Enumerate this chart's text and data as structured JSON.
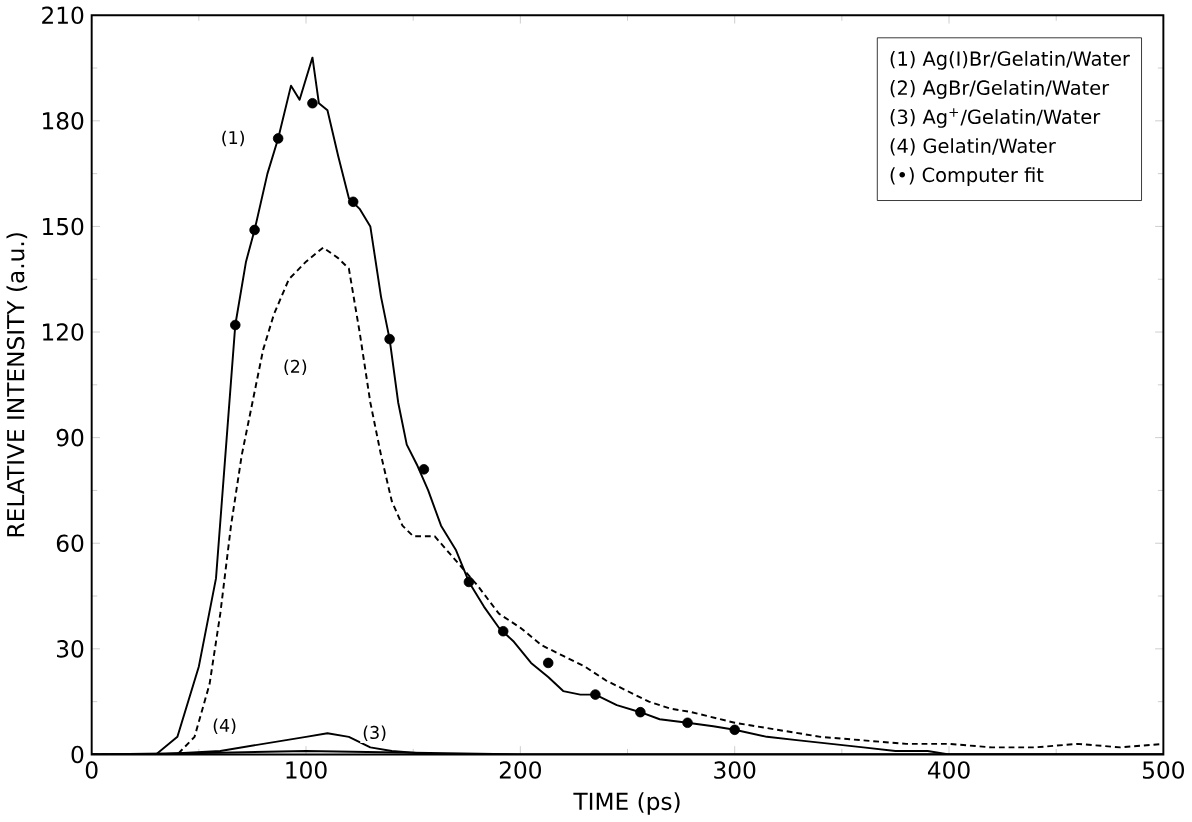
{
  "chart_data": {
    "type": "line",
    "xlabel": "TIME (ps)",
    "ylabel": "RELATIVE INTENSITY (a.u.)",
    "xlim": [
      0,
      500
    ],
    "ylim": [
      0,
      210
    ],
    "xticks": [
      0,
      100,
      200,
      300,
      400,
      500
    ],
    "yticks": [
      0,
      30,
      60,
      90,
      120,
      150,
      180,
      210
    ],
    "grid": false,
    "series": [
      {
        "color": "#000000",
        "line_style": "solid",
        "x": [
          0,
          30,
          40,
          50,
          58,
          63,
          67,
          72,
          76,
          82,
          87,
          93,
          97,
          103,
          106,
          110,
          115,
          120,
          125,
          130,
          135,
          139,
          143,
          147,
          152,
          157,
          163,
          170,
          176,
          183,
          190,
          197,
          205,
          213,
          220,
          228,
          235,
          245,
          256,
          265,
          278,
          290,
          300,
          315,
          330,
          345,
          360,
          375,
          390,
          400,
          420,
          450,
          500
        ],
        "values": [
          0,
          0,
          5,
          25,
          50,
          90,
          122,
          140,
          149,
          165,
          175,
          190,
          186,
          198,
          185,
          183,
          170,
          158,
          155,
          150,
          130,
          118,
          100,
          88,
          82,
          75,
          65,
          58,
          49,
          42,
          36,
          32,
          26,
          22,
          18,
          17,
          17,
          14,
          12,
          10,
          9,
          8,
          7,
          5,
          4,
          3,
          2,
          1,
          1,
          0,
          0,
          0,
          0
        ]
      },
      {
        "color": "#000000",
        "line_style": "dashed",
        "x": [
          0,
          40,
          48,
          55,
          60,
          65,
          70,
          75,
          80,
          85,
          92,
          100,
          108,
          115,
          120,
          125,
          130,
          135,
          140,
          145,
          150,
          160,
          170,
          180,
          190,
          200,
          210,
          220,
          230,
          240,
          250,
          260,
          270,
          280,
          300,
          320,
          340,
          360,
          380,
          400,
          420,
          440,
          460,
          480,
          500
        ],
        "values": [
          0,
          0,
          5,
          20,
          40,
          65,
          85,
          100,
          115,
          125,
          135,
          140,
          144,
          141,
          138,
          120,
          100,
          85,
          72,
          65,
          62,
          62,
          55,
          48,
          40,
          36,
          31,
          28,
          25,
          21,
          18,
          15,
          13,
          12,
          9,
          7,
          5,
          4,
          3,
          3,
          2,
          2,
          3,
          2,
          3
        ]
      },
      {
        "color": "#000000",
        "line_style": "solid",
        "x": [
          0,
          30,
          60,
          80,
          100,
          110,
          120,
          130,
          140,
          160,
          300,
          500
        ],
        "values": [
          0,
          0,
          1,
          3,
          5,
          6,
          5,
          2,
          1,
          0,
          0,
          0
        ]
      },
      {
        "color": "#000000",
        "line_style": "solid",
        "x": [
          0,
          60,
          100,
          150,
          200,
          500
        ],
        "values": [
          0,
          0.5,
          1,
          0.5,
          0,
          0
        ]
      },
      {
        "type": "scatter",
        "marker": "circle",
        "color": "#000000",
        "x": [
          67,
          76,
          87,
          103,
          122,
          139,
          155,
          176,
          192,
          213,
          235,
          256,
          278,
          300
        ],
        "values": [
          122,
          149,
          175,
          185,
          157,
          118,
          81,
          49,
          35,
          26,
          17,
          12,
          9,
          7
        ]
      }
    ],
    "annotations": [
      "(1) Ag(I)Br/Gelatin/Water",
      "(2) AgBr/Gelatin/Water",
      "(3) Ag$^{+}$/Gelatin/Water",
      "(4) Gelatin/Water",
      "(•) Computer fit",
      {
        "text": "(1)",
        "x": 66,
        "y": 175
      },
      {
        "text": "(2)",
        "x": 95,
        "y": 110
      },
      {
        "text": "(3)",
        "x": 132,
        "y": 6
      },
      {
        "text": "(4)",
        "x": 62,
        "y": 8
      }
    ]
  }
}
